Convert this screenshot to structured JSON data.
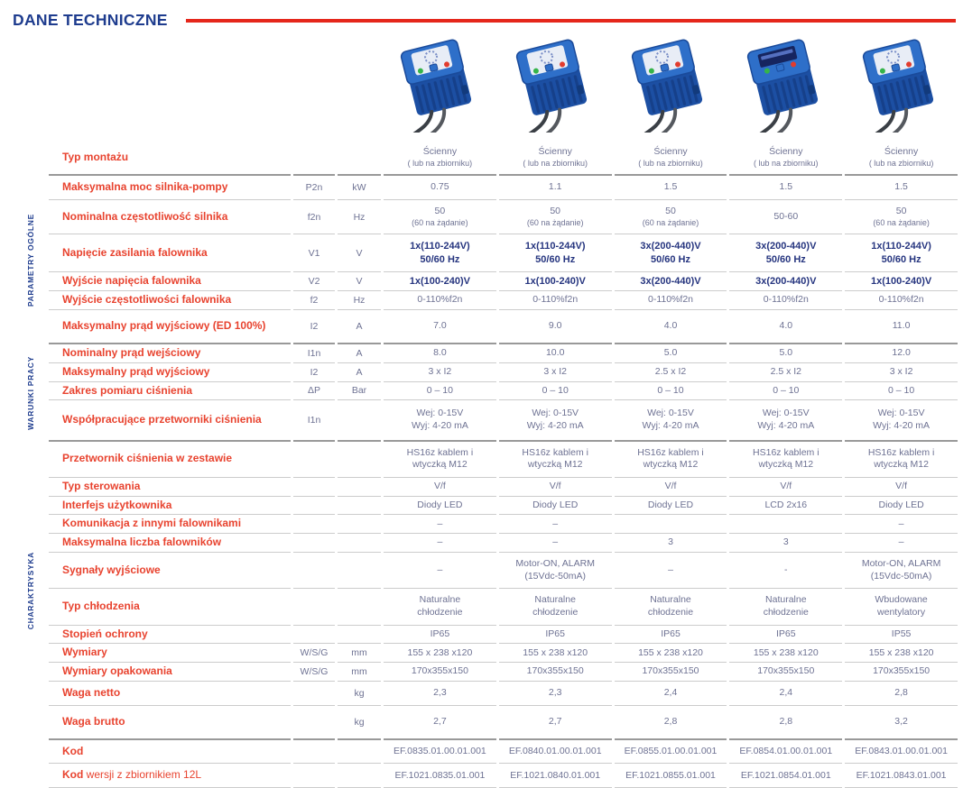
{
  "page": {
    "title": "DANE TECHNICZNE"
  },
  "colors": {
    "title_navy": "#1e3c8e",
    "accent_red": "#e8432f",
    "rule_red": "#e5271b",
    "value_gray": "#6e7293",
    "emphasis_navy": "#26357f",
    "device_blue": "#2e6fc9"
  },
  "products": {
    "items": [
      {
        "image": "inverter-device",
        "panel": "leds"
      },
      {
        "image": "inverter-device",
        "panel": "leds"
      },
      {
        "image": "inverter-device",
        "panel": "leds"
      },
      {
        "image": "inverter-device",
        "panel": "lcd"
      },
      {
        "image": "inverter-device",
        "panel": "leds"
      }
    ]
  },
  "table": {
    "sections": [
      {
        "label": "",
        "end": "heavy",
        "rows": [
          {
            "label": "Typ montażu",
            "symbol": "",
            "unit": "",
            "small_sub": true,
            "size": "mid",
            "values": [
              "Ścienny\n( lub na zbiorniku)",
              "Ścienny\n( lub na zbiorniku)",
              "Ścienny\n( lub na zbiorniku)",
              "Ścienny\n( lub na zbiorniku)",
              "Ścienny\n( lub na zbiorniku)"
            ]
          }
        ]
      },
      {
        "label": "PARAMETRY OGÓLNE",
        "end": "heavy",
        "rows": [
          {
            "label": "Maksymalna moc silnika-pompy",
            "symbol": "P2n",
            "unit": "kW",
            "size": "mid",
            "values": [
              "0.75",
              "1.1",
              "1.5",
              "1.5",
              "1.5"
            ]
          },
          {
            "label": "Nominalna częstotliwość silnika",
            "symbol": "f2n",
            "unit": "Hz",
            "small_sub": true,
            "size": "mid",
            "values": [
              "50\n(60 na żądanie)",
              "50\n(60 na żądanie)",
              "50\n(60 na żądanie)",
              "50-60",
              "50\n(60 na żądanie)"
            ]
          },
          {
            "label": "Napięcie zasilania falownika",
            "symbol": "V1",
            "unit": "V",
            "emphasis": true,
            "size": "mid",
            "values": [
              "1x(110-244V)\n50/60 Hz",
              "1x(110-244V)\n50/60 Hz",
              "3x(200-440)V\n50/60 Hz",
              "3x(200-440)V\n50/60 Hz",
              "1x(110-244V)\n50/60 Hz"
            ]
          },
          {
            "label": "Wyjście napięcia falownika",
            "symbol": "V2",
            "unit": "V",
            "emphasis": true,
            "values": [
              "1x(100-240)V",
              "1x(100-240)V",
              "3x(200-440)V",
              "3x(200-440)V",
              "1x(100-240)V"
            ]
          },
          {
            "label": "Wyjście częstotliwości falownika",
            "symbol": "f2",
            "unit": "Hz",
            "values": [
              "0-110%f2n",
              "0-110%f2n",
              "0-110%f2n",
              "0-110%f2n",
              "0-110%f2n"
            ]
          },
          {
            "label": "Maksymalny prąd wyjściowy (ED 100%)",
            "symbol": "I2",
            "unit": "A",
            "size": "tall",
            "values": [
              "7.0",
              "9.0",
              "4.0",
              "4.0",
              "11.0"
            ]
          }
        ]
      },
      {
        "label": "WARUNKI PRACY",
        "end": "heavy",
        "rows": [
          {
            "label": "Nominalny prąd wejściowy",
            "symbol": "I1n",
            "unit": "A",
            "values": [
              "8.0",
              "10.0",
              "5.0",
              "5.0",
              "12.0"
            ]
          },
          {
            "label": "Maksymalny prąd wyjściowy",
            "symbol": "I2",
            "unit": "A",
            "values": [
              "3 x I2",
              "3 x I2",
              "2.5 x I2",
              "2.5 x I2",
              "3 x I2"
            ]
          },
          {
            "label": "Zakres pomiaru ciśnienia",
            "symbol": "ΔP",
            "unit": "Bar",
            "values": [
              "0 – 10",
              "0 – 10",
              "0 – 10",
              "0 – 10",
              "0 – 10"
            ]
          },
          {
            "label": "Współpracujące przetworniki ciśnienia",
            "symbol": "I1n",
            "unit": "",
            "size": "pad",
            "values": [
              "Wej: 0-15V\nWyj: 4-20 mA",
              "Wej: 0-15V\nWyj: 4-20 mA",
              "Wej: 0-15V\nWyj: 4-20 mA",
              "Wej: 0-15V\nWyj: 4-20 mA",
              "Wej: 0-15V\nWyj: 4-20 mA"
            ]
          }
        ]
      },
      {
        "label": "CHARAKTRYSYKA",
        "end": "heavy",
        "rows": [
          {
            "label": "Przetwornik ciśnienia w zestawie",
            "symbol": "",
            "unit": "",
            "size": "mid",
            "values": [
              "HS16z kablem i\nwtyczką M12",
              "HS16z kablem i\nwtyczką M12",
              "HS16z kablem i\nwtyczką M12",
              "HS16z kablem i\nwtyczką M12",
              "HS16z kablem i\nwtyczką M12"
            ]
          },
          {
            "label": "Typ sterowania",
            "symbol": "",
            "unit": "",
            "values": [
              "V/f",
              "V/f",
              "V/f",
              "V/f",
              "V/f"
            ]
          },
          {
            "label": "Interfejs użytkownika",
            "symbol": "",
            "unit": "",
            "values": [
              "Diody LED",
              "Diody LED",
              "Diody LED",
              "LCD 2x16",
              "Diody LED"
            ]
          },
          {
            "label": "Komunikacja z innymi falownikami",
            "symbol": "",
            "unit": "",
            "values": [
              "–",
              "–",
              "",
              "",
              "–"
            ]
          },
          {
            "label": "Maksymalna liczba falowników",
            "symbol": "",
            "unit": "",
            "values": [
              "–",
              "–",
              "3",
              "3",
              "–"
            ]
          },
          {
            "label": "Sygnały wyjściowe",
            "symbol": "",
            "unit": "",
            "size": "mid",
            "values": [
              "–",
              "Motor-ON, ALARM\n(15Vdc-50mA)",
              "–",
              "-",
              "Motor-ON, ALARM\n(15Vdc-50mA)"
            ]
          },
          {
            "label": "Typ chłodzenia",
            "symbol": "",
            "unit": "",
            "size": "mid",
            "values": [
              "Naturalne\nchłodzenie",
              "Naturalne\nchłodzenie",
              "Naturalne\nchłodzenie",
              "Naturalne\nchłodzenie",
              "Wbudowane\nwentylatory"
            ]
          },
          {
            "label": "Stopień ochrony",
            "symbol": "",
            "unit": "",
            "values": [
              "IP65",
              "IP65",
              "IP65",
              "IP65",
              "IP55"
            ]
          },
          {
            "label": "Wymiary",
            "symbol": "W/S/G",
            "unit": "mm",
            "values": [
              "155 x 238 x120",
              "155 x 238 x120",
              "155 x 238 x120",
              "155 x 238 x120",
              "155 x 238 x120"
            ]
          },
          {
            "label": "Wymiary opakowania",
            "symbol": "W/S/G",
            "unit": "mm",
            "values": [
              "170x355x150",
              "170x355x150",
              "170x355x150",
              "170x355x150",
              "170x355x150"
            ]
          },
          {
            "label": "Waga netto",
            "symbol": "",
            "unit": "kg",
            "size": "mid",
            "values": [
              "2,3",
              "2,3",
              "2,4",
              "2,4",
              "2,8"
            ]
          },
          {
            "label": "Waga brutto",
            "symbol": "",
            "unit": "kg",
            "size": "tall",
            "values": [
              "2,7",
              "2,7",
              "2,8",
              "2,8",
              "3,2"
            ]
          }
        ]
      },
      {
        "label": "",
        "end": "light",
        "rows": [
          {
            "label": "Kod",
            "symbol": "",
            "unit": "",
            "size": "mid",
            "values": [
              "EF.0835.01.00.01.001",
              "EF.0840.01.00.01.001",
              "EF.0855.01.00.01.001",
              "EF.0854.01.00.01.001",
              "EF.0843.01.00.01.001"
            ]
          },
          {
            "label": "Kod",
            "label_rest": " wersji z zbiornikiem 12L",
            "symbol": "",
            "unit": "",
            "size": "mid",
            "values": [
              "EF.1021.0835.01.001",
              "EF.1021.0840.01.001",
              "EF.1021.0855.01.001",
              "EF.1021.0854.01.001",
              "EF.1021.0843.01.001"
            ]
          }
        ]
      }
    ]
  }
}
